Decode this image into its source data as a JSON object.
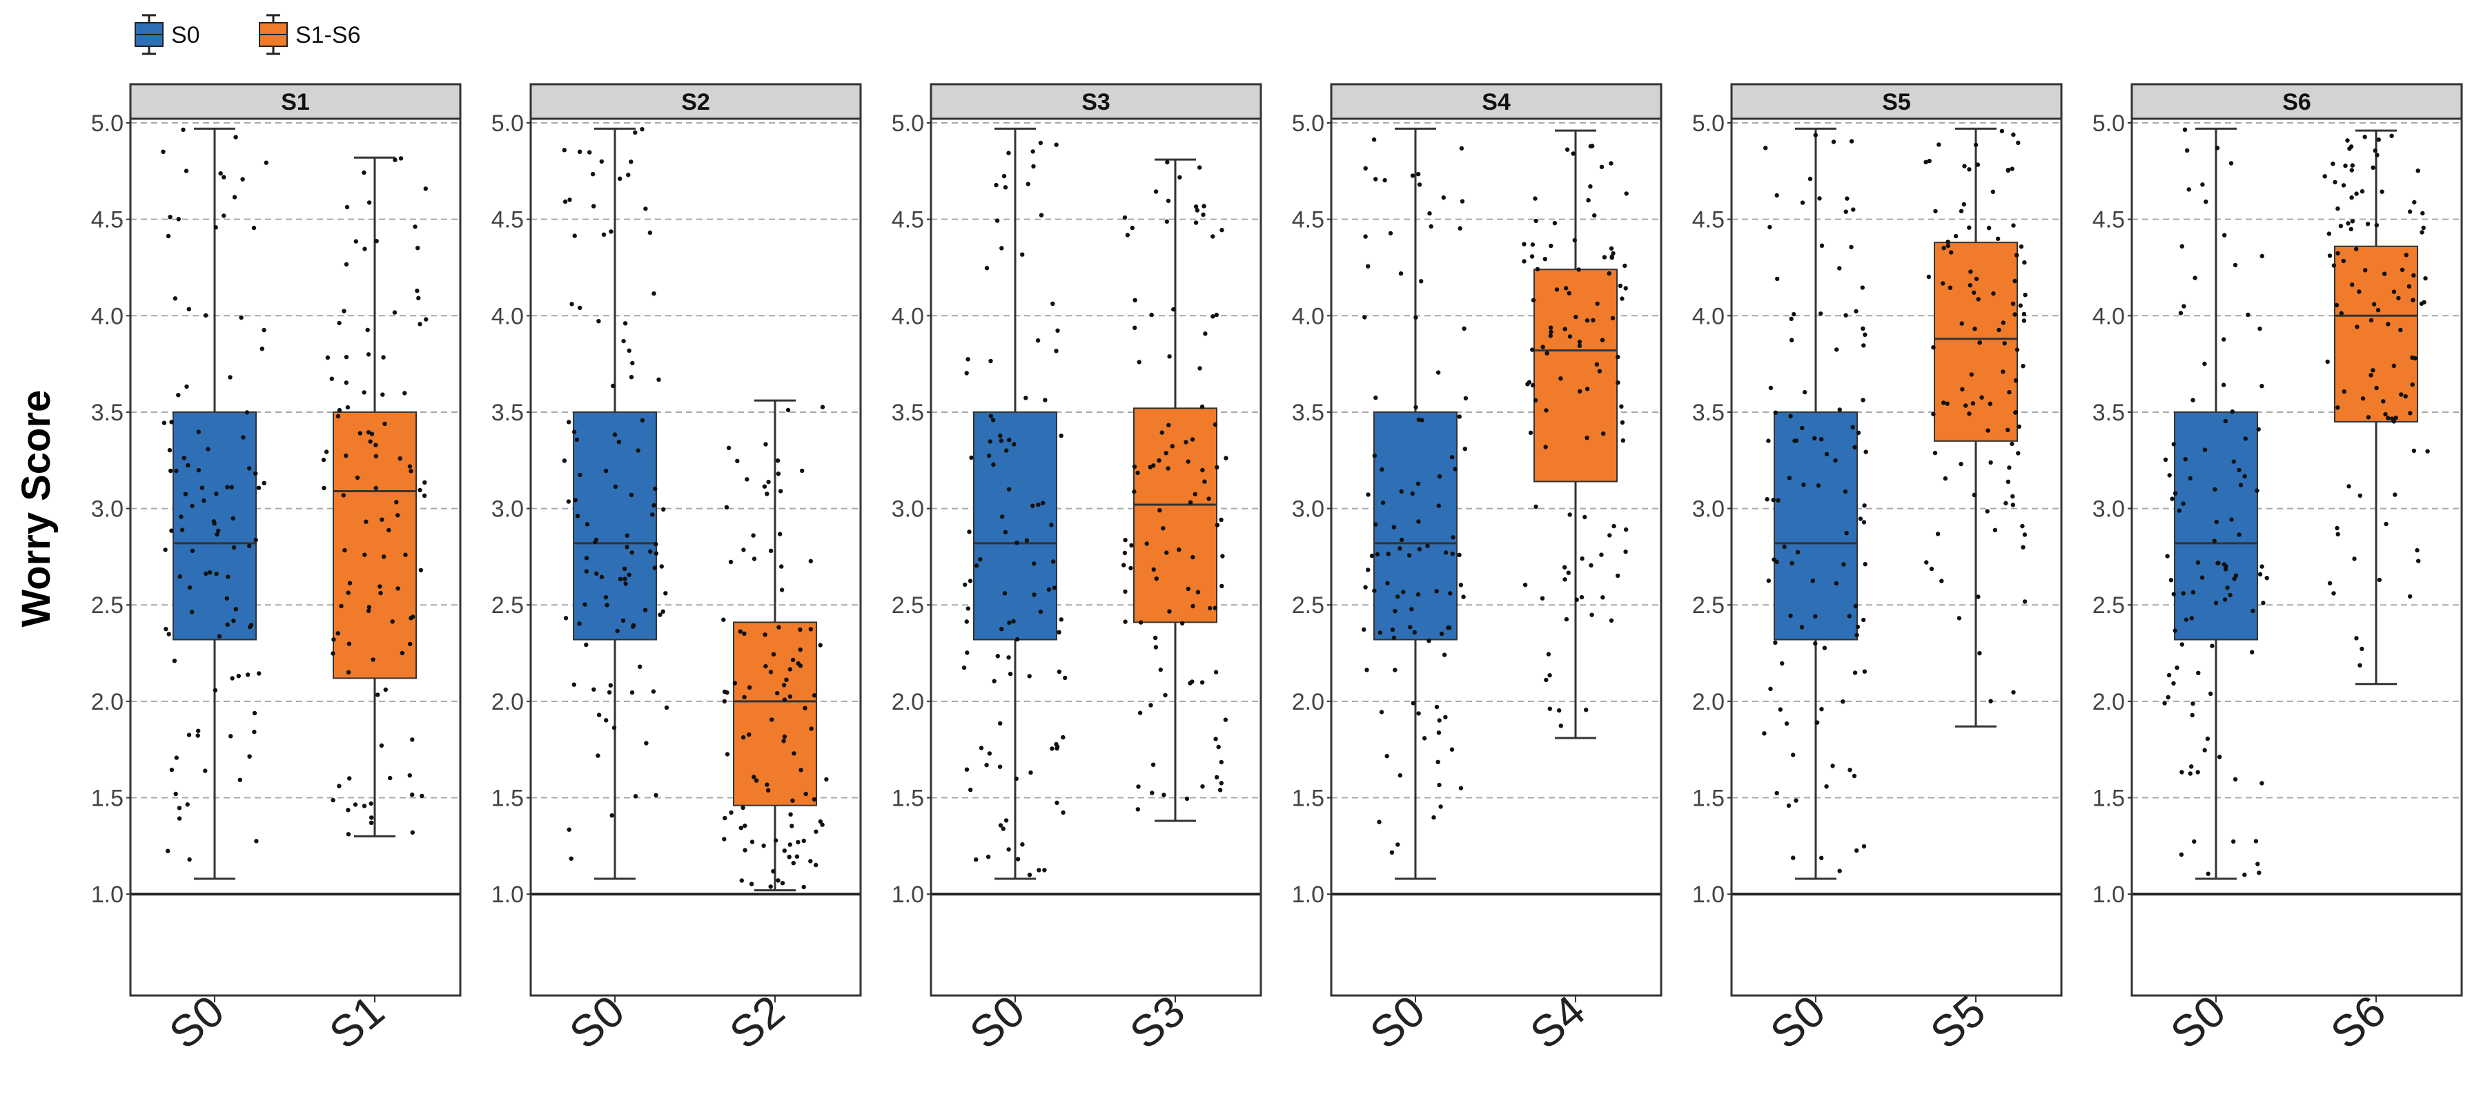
{
  "colors": {
    "S0": "#2f6fb5",
    "S1-S6": "#ef7b2b",
    "strip": "#d3d3d3",
    "grid": "#a8a8a8",
    "point": "#111111"
  },
  "legend": [
    {
      "label": "S0",
      "color_key": "S0"
    },
    {
      "label": "S1-S6",
      "color_key": "S1-S6"
    }
  ],
  "chart_data": {
    "type": "box",
    "ylabel": "Worry Score",
    "ylim": [
      0.75,
      5.0
    ],
    "yticks": [
      "1.0",
      "1.5",
      "2.0",
      "2.5",
      "3.0",
      "3.5",
      "4.0",
      "4.5",
      "5.0"
    ],
    "grid": "horizontal dashed",
    "legend_position": "top-left",
    "panels": [
      {
        "strip": "S1",
        "boxes": [
          {
            "label": "S0",
            "group": "S0",
            "min": 1.08,
            "q1": 2.32,
            "median": 2.82,
            "q3": 3.5,
            "max": 4.97
          },
          {
            "label": "S1",
            "group": "S1-S6",
            "min": 1.3,
            "q1": 2.12,
            "median": 3.09,
            "q3": 3.5,
            "max": 4.82
          }
        ]
      },
      {
        "strip": "S2",
        "boxes": [
          {
            "label": "S0",
            "group": "S0",
            "min": 1.08,
            "q1": 2.32,
            "median": 2.82,
            "q3": 3.5,
            "max": 4.97
          },
          {
            "label": "S2",
            "group": "S1-S6",
            "min": 1.02,
            "q1": 1.46,
            "median": 2.0,
            "q3": 2.41,
            "max": 3.56
          }
        ]
      },
      {
        "strip": "S3",
        "boxes": [
          {
            "label": "S0",
            "group": "S0",
            "min": 1.08,
            "q1": 2.32,
            "median": 2.82,
            "q3": 3.5,
            "max": 4.97
          },
          {
            "label": "S3",
            "group": "S1-S6",
            "min": 1.38,
            "q1": 2.41,
            "median": 3.02,
            "q3": 3.52,
            "max": 4.81
          }
        ]
      },
      {
        "strip": "S4",
        "boxes": [
          {
            "label": "S0",
            "group": "S0",
            "min": 1.08,
            "q1": 2.32,
            "median": 2.82,
            "q3": 3.5,
            "max": 4.97
          },
          {
            "label": "S4",
            "group": "S1-S6",
            "min": 1.81,
            "q1": 3.14,
            "median": 3.82,
            "q3": 4.24,
            "max": 4.96
          }
        ]
      },
      {
        "strip": "S5",
        "boxes": [
          {
            "label": "S0",
            "group": "S0",
            "min": 1.08,
            "q1": 2.32,
            "median": 2.82,
            "q3": 3.5,
            "max": 4.97
          },
          {
            "label": "S5",
            "group": "S1-S6",
            "min": 1.87,
            "q1": 3.35,
            "median": 3.88,
            "q3": 4.38,
            "max": 4.97
          }
        ]
      },
      {
        "strip": "S6",
        "boxes": [
          {
            "label": "S0",
            "group": "S0",
            "min": 1.08,
            "q1": 2.32,
            "median": 2.82,
            "q3": 3.5,
            "max": 4.97
          },
          {
            "label": "S6",
            "group": "S1-S6",
            "min": 2.09,
            "q1": 3.45,
            "median": 4.0,
            "q3": 4.36,
            "max": 4.96
          }
        ]
      }
    ]
  }
}
